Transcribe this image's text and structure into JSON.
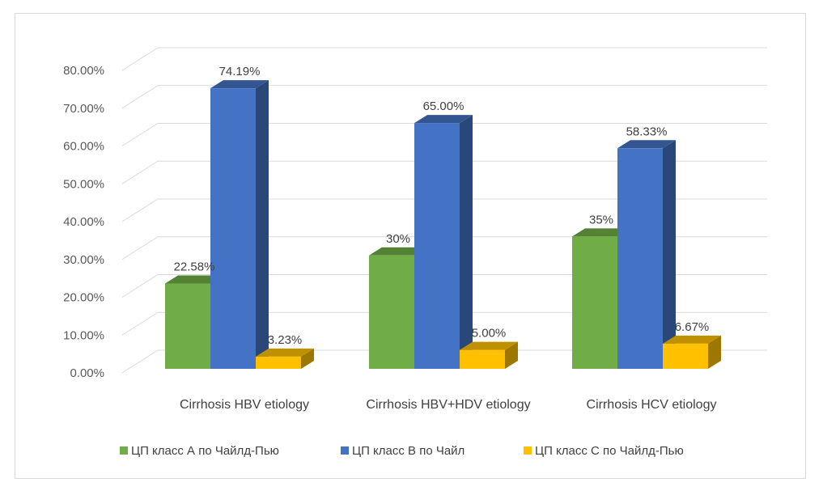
{
  "chart_data": {
    "type": "bar",
    "style": "3d-clustered-column",
    "title": "",
    "xlabel": "",
    "ylabel": "",
    "ylim": [
      0,
      80
    ],
    "y_ticks": [
      0,
      10,
      20,
      30,
      40,
      50,
      60,
      70,
      80
    ],
    "y_tick_labels": [
      "0.00%",
      "10.00%",
      "20.00%",
      "30.00%",
      "40.00%",
      "50.00%",
      "60.00%",
      "70.00%",
      "80.00%"
    ],
    "grid": true,
    "legend_position": "bottom",
    "categories": [
      "Cirrhosis HBV etiology",
      "Cirrhosis HBV+HDV etiology",
      "Cirrhosis HCV etiology"
    ],
    "series": [
      {
        "name": "ЦП класс  А по Чайлд-Пью",
        "color": "#70ad47",
        "values": [
          22.58,
          30,
          35
        ],
        "labels": [
          "22.58%",
          "30%",
          "35%"
        ]
      },
      {
        "name": "ЦП класс  В по Чайл",
        "color": "#4472c4",
        "values": [
          74.19,
          65.0,
          58.33
        ],
        "labels": [
          "74.19%",
          "65.00%",
          "58.33%"
        ]
      },
      {
        "name": "ЦП класс  С по Чайлд-Пью",
        "color": "#ffc000",
        "values": [
          3.23,
          5.0,
          6.67
        ],
        "labels": [
          "3.23%",
          "5.00%",
          "6.67%"
        ]
      }
    ]
  }
}
